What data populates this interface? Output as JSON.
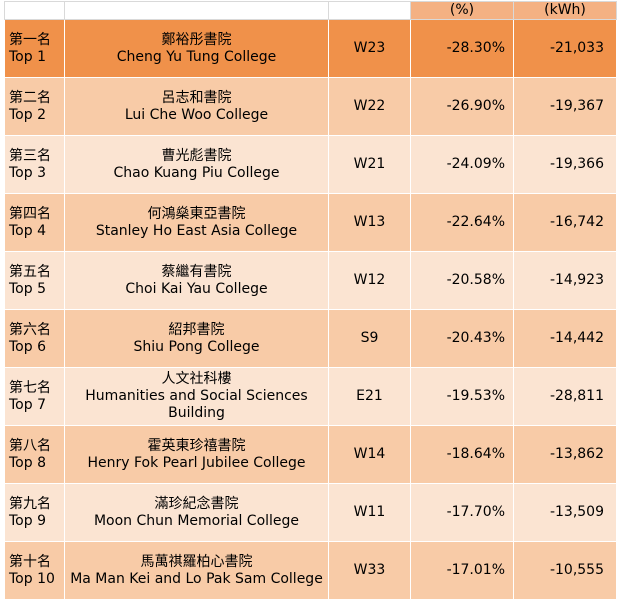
{
  "header": {
    "col1": "",
    "col2": "",
    "col3": "",
    "pct_unit": "(%)",
    "kwh_unit": "(kWh)"
  },
  "rows": [
    {
      "rank_zh": "第一名",
      "rank_en": "Top 1",
      "name_zh": "鄭裕彤書院",
      "name_en": "Cheng Yu Tung College",
      "code": "W23",
      "pct": "-28.30%",
      "kwh": "-21,033"
    },
    {
      "rank_zh": "第二名",
      "rank_en": "Top 2",
      "name_zh": "呂志和書院",
      "name_en": "Lui Che Woo College",
      "code": "W22",
      "pct": "-26.90%",
      "kwh": "-19,367"
    },
    {
      "rank_zh": "第三名",
      "rank_en": "Top 3",
      "name_zh": "曹光彪書院",
      "name_en": "Chao Kuang Piu College",
      "code": "W21",
      "pct": "-24.09%",
      "kwh": "-19,366"
    },
    {
      "rank_zh": "第四名",
      "rank_en": "Top 4",
      "name_zh": "何鴻燊東亞書院",
      "name_en": "Stanley Ho East Asia College",
      "code": "W13",
      "pct": "-22.64%",
      "kwh": "-16,742"
    },
    {
      "rank_zh": "第五名",
      "rank_en": "Top 5",
      "name_zh": "蔡繼有書院",
      "name_en": "Choi Kai Yau College",
      "code": "W12",
      "pct": "-20.58%",
      "kwh": "-14,923"
    },
    {
      "rank_zh": "第六名",
      "rank_en": "Top 6",
      "name_zh": "紹邦書院",
      "name_en": "Shiu Pong College",
      "code": "S9",
      "pct": "-20.43%",
      "kwh": "-14,442"
    },
    {
      "rank_zh": "第七名",
      "rank_en": "Top 7",
      "name_zh": "人文社科樓",
      "name_en": "Humanities and Social Sciences Building",
      "code": "E21",
      "pct": "-19.53%",
      "kwh": "-28,811"
    },
    {
      "rank_zh": "第八名",
      "rank_en": "Top 8",
      "name_zh": "霍英東珍禧書院",
      "name_en": "Henry Fok Pearl Jubilee College",
      "code": "W14",
      "pct": "-18.64%",
      "kwh": "-13,862"
    },
    {
      "rank_zh": "第九名",
      "rank_en": "Top 9",
      "name_zh": "滿珍紀念書院",
      "name_en": "Moon Chun Memorial College",
      "code": "W11",
      "pct": "-17.70%",
      "kwh": "-13,509"
    },
    {
      "rank_zh": "第十名",
      "rank_en": "Top 10",
      "name_zh": "馬萬祺羅柏心書院",
      "name_en": "Ma Man Kei and Lo Pak Sam College",
      "code": "W33",
      "pct": "-17.01%",
      "kwh": "-10,555"
    }
  ],
  "colors": {
    "top_row": "#f0914a",
    "odd_row": "#f8cba7",
    "even_row": "#fbe4d2",
    "header_unit": "#f4b183"
  }
}
